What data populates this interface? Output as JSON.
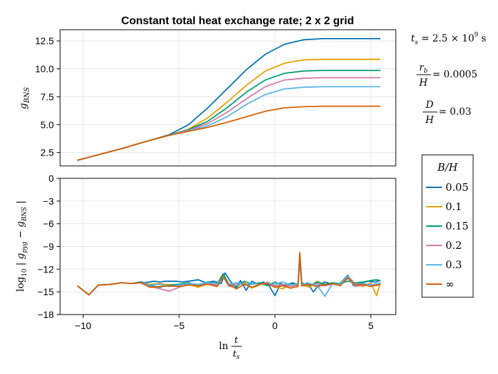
{
  "chart_data": [
    {
      "type": "line",
      "title": "Constant total heat exchange rate; 2 x 2 grid",
      "ylabel": "g_BNS",
      "xlim": [
        -11.2,
        6.3
      ],
      "ylim": [
        1.3,
        13.5
      ],
      "yticks": [
        2.5,
        5.0,
        7.5,
        10.0,
        12.5
      ],
      "ytick_labels": [
        "2.5",
        "5.0",
        "7.5",
        "10.0",
        "12.5"
      ],
      "grid": true,
      "x_range": [
        -10.3,
        5.5
      ],
      "series": [
        {
          "name": "0.05",
          "color": "#0072b2",
          "plateau": 12.7,
          "x": [
            -10.3,
            -8,
            -6.5,
            -5.5,
            -4.5,
            -3.5,
            -2.5,
            -1.5,
            -0.5,
            0.5,
            1.5,
            2.5,
            3.5,
            4.5,
            5.5
          ],
          "values": [
            1.8,
            2.85,
            3.6,
            4.1,
            5.0,
            6.5,
            8.2,
            9.9,
            11.3,
            12.2,
            12.6,
            12.7,
            12.7,
            12.7,
            12.7
          ]
        },
        {
          "name": "0.1",
          "color": "#e69f00",
          "plateau": 10.85,
          "x": [
            -10.3,
            -8,
            -6.5,
            -5.5,
            -4.5,
            -3.5,
            -2.5,
            -1.5,
            -0.5,
            0.5,
            1.5,
            2.5,
            3.5,
            4.5,
            5.5
          ],
          "values": [
            1.8,
            2.85,
            3.6,
            4.05,
            4.6,
            5.6,
            7.0,
            8.5,
            9.8,
            10.5,
            10.8,
            10.85,
            10.85,
            10.85,
            10.85
          ]
        },
        {
          "name": "0.15",
          "color": "#009e73",
          "plateau": 9.85,
          "x": [
            -10.3,
            -8,
            -6.5,
            -5.5,
            -4.5,
            -3.5,
            -2.5,
            -1.5,
            -0.5,
            0.5,
            1.5,
            2.5,
            3.5,
            4.5,
            5.5
          ],
          "values": [
            1.8,
            2.85,
            3.6,
            4.05,
            4.55,
            5.3,
            6.5,
            7.9,
            9.0,
            9.6,
            9.8,
            9.85,
            9.85,
            9.85,
            9.85
          ]
        },
        {
          "name": "0.2",
          "color": "#cc79a7",
          "plateau": 9.2,
          "x": [
            -10.3,
            -8,
            -6.5,
            -5.5,
            -4.5,
            -3.5,
            -2.5,
            -1.5,
            -0.5,
            0.5,
            1.5,
            2.5,
            3.5,
            4.5,
            5.5
          ],
          "values": [
            1.8,
            2.85,
            3.6,
            4.05,
            4.5,
            5.1,
            6.1,
            7.3,
            8.4,
            9.0,
            9.15,
            9.2,
            9.2,
            9.2,
            9.2
          ]
        },
        {
          "name": "0.3",
          "color": "#56b4e9",
          "plateau": 8.4,
          "x": [
            -10.3,
            -8,
            -6.5,
            -5.5,
            -4.5,
            -3.5,
            -2.5,
            -1.5,
            -0.5,
            0.5,
            1.5,
            2.5,
            3.5,
            4.5,
            5.5
          ],
          "values": [
            1.8,
            2.85,
            3.6,
            4.05,
            4.45,
            4.9,
            5.7,
            6.8,
            7.7,
            8.2,
            8.35,
            8.4,
            8.4,
            8.4,
            8.4
          ]
        },
        {
          "name": "∞",
          "color": "#d55e00",
          "plateau": 6.65,
          "x": [
            -10.3,
            -8,
            -6.5,
            -5.5,
            -4.5,
            -3.5,
            -2.5,
            -1.5,
            -0.5,
            0.5,
            1.5,
            2.5,
            3.5,
            4.5,
            5.5
          ],
          "values": [
            1.8,
            2.85,
            3.6,
            4.05,
            4.4,
            4.75,
            5.2,
            5.7,
            6.2,
            6.5,
            6.6,
            6.65,
            6.65,
            6.65,
            6.65
          ]
        }
      ]
    },
    {
      "type": "line",
      "xlabel_num": "t",
      "xlabel_den": "t_s",
      "xlabel_prefix": "ln",
      "ylabel": "log10 | g_pyg − g_BNS |",
      "xlim": [
        -11.2,
        6.3
      ],
      "ylim": [
        -18,
        0
      ],
      "xticks": [
        -10,
        -5,
        0,
        5
      ],
      "xtick_labels": [
        "−10",
        "−5",
        "0",
        "5"
      ],
      "yticks": [
        0,
        -3,
        -6,
        -9,
        -12,
        -15,
        -18
      ],
      "ytick_labels": [
        "0",
        "−3",
        "−6",
        "−9",
        "−12",
        "−15",
        "−18"
      ],
      "grid": true,
      "series_note": "Noisy error series around −14 for each B/H; values estimated",
      "series": [
        {
          "name": "0.05",
          "color": "#0072b2",
          "x": [
            -10.3,
            -9.7,
            -9.2,
            -8.5,
            -8.0,
            -7.5,
            -7.0,
            -6.8,
            -6.3,
            -6.0,
            -5.7,
            -5.2,
            -4.8,
            -4.5,
            -4.0,
            -3.6,
            -3.2,
            -2.8,
            -2.6,
            -2.3,
            -2.0,
            -1.8,
            -1.5,
            -1.2,
            -0.9,
            -0.6,
            -0.3,
            0.0,
            0.3,
            0.6,
            0.9,
            1.2,
            1.3,
            1.4,
            1.7,
            2.0,
            2.3,
            2.6,
            3.0,
            3.4,
            3.8,
            4.1,
            4.5,
            4.9,
            5.2,
            5.5
          ],
          "values": [
            -14.2,
            -15.4,
            -14.1,
            -14.0,
            -13.8,
            -13.9,
            -13.7,
            -13.8,
            -13.6,
            -13.7,
            -13.6,
            -13.6,
            -13.7,
            -13.6,
            -13.4,
            -13.8,
            -13.6,
            -13.9,
            -12.5,
            -13.7,
            -14.5,
            -13.5,
            -14.8,
            -13.6,
            -14.0,
            -13.7,
            -14.2,
            -15.5,
            -13.9,
            -14.3,
            -13.8,
            -14.0,
            -11.0,
            -14.2,
            -13.8,
            -15.0,
            -14.1,
            -13.7,
            -14.0,
            -13.9,
            -12.8,
            -14.2,
            -13.8,
            -13.6,
            -13.7,
            -13.5
          ]
        },
        {
          "name": "0.1",
          "color": "#e69f00",
          "x": [
            -10.3,
            -9.7,
            -9.2,
            -8.5,
            -8.0,
            -7.5,
            -7.0,
            -6.5,
            -6.0,
            -5.5,
            -5.0,
            -4.5,
            -4.0,
            -3.5,
            -3.0,
            -2.7,
            -2.4,
            -2.0,
            -1.6,
            -1.2,
            -0.8,
            -0.4,
            0.0,
            0.4,
            0.8,
            1.2,
            1.3,
            1.4,
            1.8,
            2.2,
            2.6,
            3.0,
            3.4,
            3.8,
            4.2,
            4.6,
            5.0,
            5.3,
            5.5
          ],
          "values": [
            -14.2,
            -15.4,
            -14.1,
            -14.0,
            -13.8,
            -13.9,
            -13.8,
            -14.0,
            -13.9,
            -14.1,
            -14.3,
            -14.0,
            -14.4,
            -13.9,
            -14.1,
            -12.8,
            -14.2,
            -14.0,
            -13.8,
            -14.5,
            -14.1,
            -13.7,
            -14.3,
            -14.6,
            -14.0,
            -14.2,
            -10.3,
            -14.1,
            -14.4,
            -13.6,
            -14.1,
            -13.9,
            -14.2,
            -13.0,
            -14.0,
            -14.3,
            -13.8,
            -15.5,
            -13.8
          ]
        },
        {
          "name": "0.15",
          "color": "#009e73",
          "x": [
            -10.3,
            -9.7,
            -9.2,
            -8.5,
            -8.0,
            -7.5,
            -7.0,
            -6.5,
            -6.0,
            -5.5,
            -5.0,
            -4.5,
            -4.0,
            -3.5,
            -3.0,
            -2.7,
            -2.4,
            -2.0,
            -1.6,
            -1.2,
            -0.8,
            -0.4,
            0.0,
            0.4,
            0.8,
            1.2,
            1.3,
            1.4,
            1.8,
            2.2,
            2.6,
            3.0,
            3.4,
            3.8,
            4.2,
            4.6,
            5.0,
            5.3,
            5.5
          ],
          "values": [
            -14.2,
            -15.4,
            -14.1,
            -14.0,
            -13.8,
            -13.9,
            -13.8,
            -14.2,
            -14.4,
            -14.1,
            -14.0,
            -13.8,
            -14.2,
            -13.7,
            -13.9,
            -12.6,
            -14.0,
            -14.3,
            -13.6,
            -14.0,
            -13.8,
            -14.2,
            -13.7,
            -14.1,
            -13.9,
            -14.0,
            -10.0,
            -13.8,
            -14.2,
            -13.7,
            -14.0,
            -13.8,
            -13.9,
            -13.6,
            -13.8,
            -13.7,
            -13.5,
            -13.4,
            -13.5
          ]
        },
        {
          "name": "0.2",
          "color": "#cc79a7",
          "x": [
            -10.3,
            -9.7,
            -9.2,
            -8.5,
            -8.0,
            -7.5,
            -7.0,
            -6.5,
            -6.0,
            -5.5,
            -5.0,
            -4.5,
            -4.0,
            -3.5,
            -3.0,
            -2.7,
            -2.4,
            -2.0,
            -1.6,
            -1.2,
            -0.8,
            -0.4,
            0.0,
            0.4,
            0.8,
            1.2,
            1.3,
            1.4,
            1.8,
            2.2,
            2.6,
            3.0,
            3.4,
            3.8,
            4.2,
            4.6,
            5.0,
            5.3,
            5.5
          ],
          "values": [
            -14.2,
            -15.4,
            -14.1,
            -14.0,
            -13.8,
            -13.9,
            -13.8,
            -14.3,
            -14.6,
            -14.9,
            -14.4,
            -14.0,
            -14.2,
            -13.9,
            -14.1,
            -13.0,
            -14.3,
            -14.0,
            -13.9,
            -14.4,
            -14.0,
            -13.9,
            -14.2,
            -14.0,
            -14.3,
            -14.1,
            -10.6,
            -14.0,
            -14.1,
            -13.9,
            -14.2,
            -14.0,
            -14.1,
            -13.2,
            -14.3,
            -14.1,
            -14.0,
            -14.2,
            -14.0
          ]
        },
        {
          "name": "0.3",
          "color": "#56b4e9",
          "x": [
            -10.3,
            -9.7,
            -9.2,
            -8.5,
            -8.0,
            -7.5,
            -7.0,
            -6.5,
            -6.0,
            -5.5,
            -5.0,
            -4.5,
            -4.0,
            -3.5,
            -3.0,
            -2.7,
            -2.4,
            -2.0,
            -1.6,
            -1.2,
            -0.8,
            -0.4,
            0.0,
            0.4,
            0.8,
            1.2,
            1.3,
            1.4,
            1.8,
            2.2,
            2.6,
            3.0,
            3.4,
            3.8,
            4.2,
            4.6,
            5.0,
            5.3,
            5.5
          ],
          "values": [
            -14.2,
            -15.4,
            -14.1,
            -14.0,
            -13.8,
            -13.9,
            -13.8,
            -14.1,
            -14.0,
            -14.3,
            -14.1,
            -13.9,
            -14.0,
            -13.8,
            -13.9,
            -13.1,
            -14.0,
            -13.8,
            -14.1,
            -13.9,
            -14.0,
            -13.8,
            -14.0,
            -13.7,
            -14.1,
            -13.9,
            -10.8,
            -14.0,
            -13.9,
            -14.1,
            -15.6,
            -13.9,
            -14.0,
            -12.9,
            -14.0,
            -13.9,
            -14.1,
            -13.9,
            -13.8
          ]
        },
        {
          "name": "∞",
          "color": "#d55e00",
          "x": [
            -10.3,
            -9.7,
            -9.2,
            -8.5,
            -8.0,
            -7.5,
            -7.0,
            -6.5,
            -6.0,
            -5.5,
            -5.0,
            -4.5,
            -4.0,
            -3.5,
            -3.0,
            -2.7,
            -2.4,
            -2.0,
            -1.6,
            -1.2,
            -0.8,
            -0.4,
            0.0,
            0.4,
            0.8,
            1.2,
            1.3,
            1.4,
            1.8,
            2.2,
            2.6,
            3.0,
            3.4,
            3.8,
            4.2,
            4.6,
            5.0,
            5.3,
            5.5
          ],
          "values": [
            -14.2,
            -15.4,
            -14.1,
            -14.0,
            -13.8,
            -13.9,
            -13.8,
            -14.4,
            -14.3,
            -14.2,
            -14.3,
            -14.1,
            -14.2,
            -14.0,
            -14.3,
            -12.9,
            -14.1,
            -14.6,
            -14.0,
            -14.4,
            -14.0,
            -13.9,
            -14.4,
            -14.2,
            -14.5,
            -14.3,
            -9.8,
            -14.2,
            -14.0,
            -14.3,
            -14.1,
            -13.9,
            -14.2,
            -13.1,
            -14.1,
            -14.0,
            -14.3,
            -14.1,
            -14.0
          ]
        }
      ]
    }
  ],
  "annotations": {
    "ts_lhs": "t",
    "ts_sub": "s",
    "ts_rhs": " = 2.5 × 10",
    "ts_exp": "9",
    "ts_unit": " s",
    "rb_num": "r",
    "rb_num_sub": "b",
    "rb_den": "H",
    "rb_value": " = 0.0005",
    "d_num": "D",
    "d_den": "H",
    "d_value": " = 0.03"
  },
  "legend": {
    "title": "B/H",
    "placement": "right",
    "entries": [
      "0.05",
      "0.1",
      "0.15",
      "0.2",
      "0.3",
      "∞"
    ],
    "colors": [
      "#0072b2",
      "#e69f00",
      "#009e73",
      "#cc79a7",
      "#56b4e9",
      "#d55e00"
    ]
  },
  "axis_labels": {
    "top_y_main": "g",
    "top_y_sub": "BNS",
    "bottom_y_prefix": "log",
    "bottom_y_prefix_sub": "10",
    "bottom_y_body_1": " | g",
    "bottom_y_sub_1": "pyg",
    "bottom_y_body_2": " − g",
    "bottom_y_sub_2": "BNS",
    "bottom_y_body_3": " |"
  }
}
